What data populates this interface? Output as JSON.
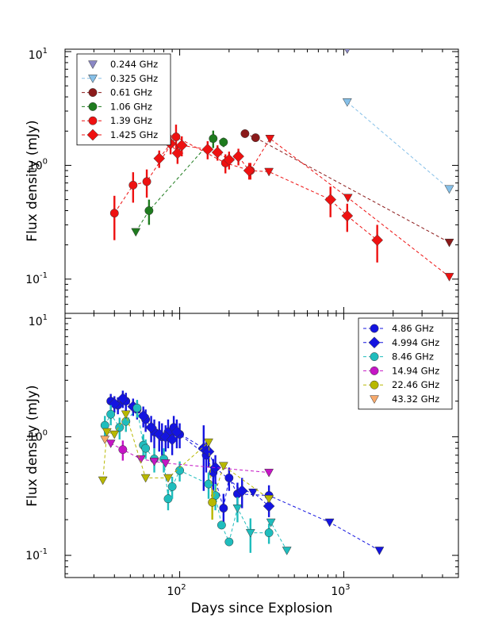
{
  "chart_data": [
    {
      "type": "scatter",
      "scale": "log-log",
      "xlabel": "Days since Explosion",
      "ylabel": "Flux density (mJy)",
      "xlim": [
        20,
        5000
      ],
      "ylim": [
        0.05,
        10.5
      ],
      "xticks": [
        {
          "value": 100,
          "label": "10",
          "exp": "2"
        },
        {
          "value": 1000,
          "label": "10",
          "exp": "3"
        }
      ],
      "yticks": [
        {
          "value": 0.1,
          "label": "10",
          "exp": "-1"
        },
        {
          "value": 1,
          "label": "10",
          "exp": "0"
        },
        {
          "value": 10,
          "label": "10",
          "exp": "1"
        }
      ],
      "legend_position": "top-left",
      "series": [
        {
          "name": "0.244 GHz",
          "color": "#8a87c4",
          "marker": "triangle-down",
          "line": false,
          "points": [
            [
              1050,
              10.5,
              0
            ]
          ]
        },
        {
          "name": "0.325 GHz",
          "color": "#86c0e8",
          "marker": "triangle-down",
          "line": true,
          "points": [
            [
              1050,
              3.6,
              0
            ],
            [
              4400,
              0.62,
              0
            ]
          ]
        },
        {
          "name": "0.61 GHz",
          "color": "#8b1a1a",
          "marker": "circle",
          "line": true,
          "points": [
            [
              250,
              1.9,
              0.12
            ],
            [
              290,
              1.75,
              0.08
            ],
            [
              4400,
              0.21,
              0
            ]
          ],
          "upper_limits": [
            2
          ]
        },
        {
          "name": "1.06 GHz",
          "color": "#1e7b1e",
          "marker": "circle",
          "line": true,
          "points": [
            [
              54,
              0.26,
              0
            ],
            [
              65,
              0.4,
              0.1
            ],
            [
              160,
              1.72,
              0.3
            ],
            [
              185,
              1.6,
              0.15
            ]
          ],
          "upper_limits": [
            0
          ]
        },
        {
          "name": "1.39 GHz",
          "color": "#ee1111",
          "marker": "circle",
          "line": true,
          "points": [
            [
              40,
              0.38,
              0.16
            ],
            [
              52,
              0.67,
              0.2
            ],
            [
              63,
              0.72,
              0.2
            ],
            [
              95,
              1.78,
              0.5
            ],
            [
              190,
              1.05,
              0.2
            ],
            [
              270,
              0.9,
              0.15
            ],
            [
              355,
              1.72,
              0
            ],
            [
              1060,
              0.52,
              0
            ],
            [
              4400,
              0.105,
              0
            ]
          ],
          "upper_limits": [
            6,
            7,
            8
          ]
        },
        {
          "name": "1.425 GHz",
          "color": "#ee1111",
          "marker": "diamond",
          "line": true,
          "points": [
            [
              75,
              1.15,
              0.2
            ],
            [
              88,
              1.55,
              0.3
            ],
            [
              97,
              1.28,
              0.25
            ],
            [
              103,
              1.5,
              0.3
            ],
            [
              148,
              1.38,
              0.25
            ],
            [
              170,
              1.3,
              0.2
            ],
            [
              200,
              1.12,
              0.2
            ],
            [
              228,
              1.2,
              0.2
            ],
            [
              265,
              0.9,
              0.15
            ],
            [
              350,
              0.88,
              0
            ],
            [
              830,
              0.5,
              0.15
            ],
            [
              1050,
              0.36,
              0.1
            ],
            [
              1600,
              0.22,
              0.08
            ]
          ],
          "upper_limits": [
            9
          ]
        }
      ]
    },
    {
      "type": "scatter",
      "scale": "log-log",
      "xlabel": "Days since Explosion",
      "ylabel": "Flux density (mJy)",
      "xlim": [
        20,
        5000
      ],
      "ylim": [
        0.065,
        11
      ],
      "xticks": [
        {
          "value": 100,
          "label": "10",
          "exp": "2"
        },
        {
          "value": 1000,
          "label": "10",
          "exp": "3"
        }
      ],
      "yticks": [
        {
          "value": 0.1,
          "label": "10",
          "exp": "-1"
        },
        {
          "value": 1,
          "label": "10",
          "exp": "0"
        },
        {
          "value": 10,
          "label": "10",
          "exp": "1"
        }
      ],
      "legend_position": "top-right",
      "series": [
        {
          "name": "4.86 GHz",
          "color": "#1414e0",
          "marker": "circle",
          "line": true,
          "points": [
            [
              38,
              2.0,
              0.3
            ],
            [
              42,
              1.85,
              0.3
            ],
            [
              47,
              2.0,
              0.35
            ],
            [
              55,
              1.7,
              0.3
            ],
            [
              62,
              1.4,
              0.3
            ],
            [
              70,
              1.1,
              0.3
            ],
            [
              78,
              1.0,
              0.3
            ],
            [
              85,
              1.1,
              0.3
            ],
            [
              92,
              1.2,
              0.3
            ],
            [
              100,
              1.05,
              0.25
            ],
            [
              145,
              0.7,
              0.2
            ],
            [
              160,
              0.5,
              0.15
            ],
            [
              185,
              0.25,
              0.08
            ],
            [
              200,
              0.45,
              0.1
            ],
            [
              225,
              0.33,
              0.08
            ],
            [
              350,
              0.32,
              0.07
            ],
            [
              820,
              0.19,
              0
            ],
            [
              1650,
              0.11,
              0
            ]
          ],
          "upper_limits": [
            16,
            17
          ]
        },
        {
          "name": "4.994 GHz",
          "color": "#1414e0",
          "marker": "diamond",
          "line": true,
          "points": [
            [
              40,
              1.9,
              0.3
            ],
            [
              45,
              2.1,
              0.35
            ],
            [
              52,
              1.8,
              0.3
            ],
            [
              60,
              1.5,
              0.3
            ],
            [
              67,
              1.2,
              0.3
            ],
            [
              75,
              1.05,
              0.3
            ],
            [
              82,
              1.0,
              0.25
            ],
            [
              90,
              0.95,
              0.25
            ],
            [
              96,
              1.1,
              0.3
            ],
            [
              140,
              0.8,
              0.45
            ],
            [
              150,
              0.75,
              0.2
            ],
            [
              165,
              0.55,
              0.15
            ],
            [
              240,
              0.35,
              0.1
            ],
            [
              280,
              0.34,
              0
            ],
            [
              350,
              0.26,
              0.05
            ]
          ],
          "upper_limits": [
            13
          ]
        },
        {
          "name": "8.46 GHz",
          "color": "#1fbdbd",
          "marker": "circle",
          "line": true,
          "points": [
            [
              35,
              1.25,
              0.25
            ],
            [
              38,
              1.55,
              0.3
            ],
            [
              43,
              1.2,
              0.25
            ],
            [
              47,
              1.35,
              0.25
            ],
            [
              55,
              1.75,
              0.3
            ],
            [
              60,
              0.85,
              0.2
            ],
            [
              62,
              0.8,
              0.15
            ],
            [
              70,
              0.65,
              0.15
            ],
            [
              80,
              0.65,
              0.15
            ],
            [
              85,
              0.3,
              0.06
            ],
            [
              90,
              0.38,
              0.08
            ],
            [
              100,
              0.52,
              0.1
            ],
            [
              150,
              0.4,
              0.1
            ],
            [
              165,
              0.32,
              0.08
            ],
            [
              180,
              0.18,
              0
            ],
            [
              200,
              0.13,
              0
            ],
            [
              225,
              0.25,
              0.06
            ],
            [
              270,
              0.155,
              0.05
            ],
            [
              350,
              0.155,
              0.03
            ],
            [
              360,
              0.19,
              0
            ],
            [
              450,
              0.11,
              0
            ]
          ],
          "upper_limits": [
            16,
            17,
            19,
            20
          ]
        },
        {
          "name": "14.94 GHz",
          "color": "#c515c5",
          "marker": "circle",
          "line": true,
          "points": [
            [
              38,
              0.88,
              0
            ],
            [
              45,
              0.78,
              0.15
            ],
            [
              58,
              0.65,
              0
            ],
            [
              70,
              0.62,
              0
            ],
            [
              82,
              0.6,
              0
            ],
            [
              350,
              0.5,
              0
            ]
          ],
          "upper_limits": [
            0,
            2,
            3,
            4,
            5
          ]
        },
        {
          "name": "22.46 GHz",
          "color": "#b8b800",
          "marker": "circle",
          "line": true,
          "points": [
            [
              34,
              0.43,
              0
            ],
            [
              36,
              1.1,
              0
            ],
            [
              40,
              1.05,
              0
            ],
            [
              47,
              1.55,
              0
            ],
            [
              62,
              0.45,
              0
            ],
            [
              85,
              0.45,
              0
            ],
            [
              150,
              0.9,
              0
            ],
            [
              158,
              0.28,
              0.08
            ],
            [
              185,
              0.57,
              0
            ],
            [
              350,
              0.3,
              0
            ]
          ],
          "upper_limits": [
            0,
            1,
            2,
            3,
            4,
            5,
            6,
            8,
            9
          ]
        },
        {
          "name": "43.32 GHz",
          "color": "#f7a96b",
          "marker": "triangle-down",
          "line": false,
          "points": [
            [
              35,
              0.95,
              0
            ]
          ]
        }
      ]
    }
  ]
}
